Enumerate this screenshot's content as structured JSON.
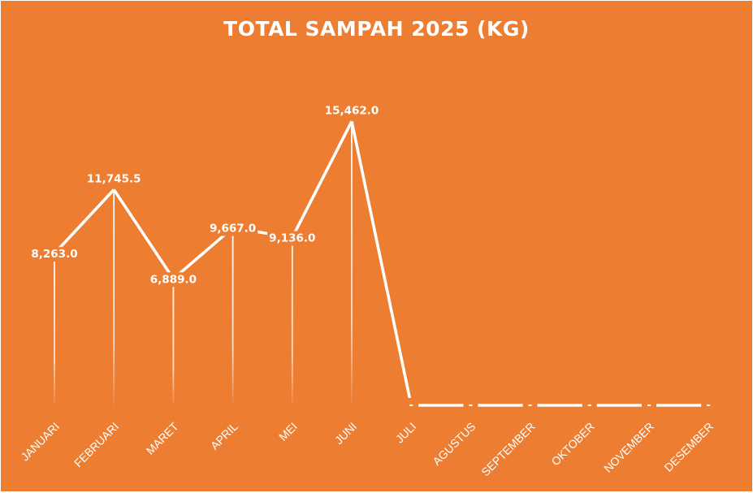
{
  "chart_data": {
    "type": "line",
    "title": "TOTAL SAMPAH 2025 (KG)",
    "xlabel": "",
    "ylabel": "",
    "categories": [
      "JANUARI",
      "FEBRUARI",
      "MARET",
      "APRIL",
      "MEI",
      "JUNI",
      "JULI",
      "AGUSTUS",
      "SEPTEMBER",
      "OKTOBER",
      "NOVEMBER",
      "DESEMBER"
    ],
    "series": [
      {
        "values": [
          8263.0,
          11745.5,
          6889.0,
          9667.0,
          9136.0,
          15462.0,
          0,
          0,
          0,
          0,
          0,
          0
        ],
        "data_labels": [
          "8,263.0",
          "11,745.5",
          "6,889.0",
          "9,667.0",
          "9,136.0",
          "15,462.0",
          "-",
          "-",
          "-",
          "-",
          "-",
          "-"
        ]
      }
    ],
    "ylim": [
      0,
      16500
    ],
    "grid": false,
    "legend": "none",
    "drop_lines": true,
    "colors": {
      "background": "#ed7d31",
      "line": "#ffffff",
      "text": "#ffffff"
    }
  }
}
